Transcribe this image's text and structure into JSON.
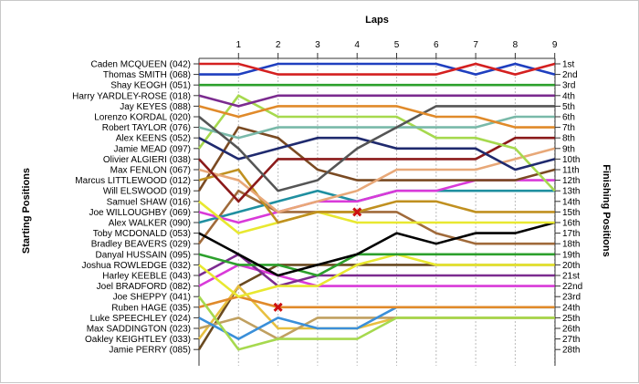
{
  "chart_data": {
    "type": "line",
    "title": "",
    "xlabel": "Laps",
    "ylabel_left": "Starting Positions",
    "ylabel_right": "Finishing Positions",
    "laps": [
      1,
      2,
      3,
      4,
      5,
      6,
      7,
      8,
      9
    ],
    "drivers": [
      "Caden MCQUEEN (042)",
      "Thomas SMITH (068)",
      "Shay KEOGH (051)",
      "Harry YARDLEY-ROSE (018)",
      "Jay KEYES (088)",
      "Lorenzo KORDAL (020)",
      "Robert TAYLOR (076)",
      "Alex KEENS (052)",
      "Jamie MEAD (097)",
      "Olivier ALGIERI (038)",
      "Max FENLON (067)",
      "Marcus LITTLEWOOD (012)",
      "Will ELSWOOD (019)",
      "Samuel SHAW (016)",
      "Joe WILLOUGHBY (069)",
      "Alex WALKER (090)",
      "Toby MCDONALD (053)",
      "Bradley BEAVERS (029)",
      "Danyal HUSSAIN (095)",
      "Joshua ROWLEDGE (032)",
      "Harley KEEBLE (043)",
      "Joel BRADFORD (082)",
      "Joe SHEPPY (041)",
      "Ruben HAGE (035)",
      "Luke SPEECHLEY (024)",
      "Max SADDINGTON (023)",
      "Oakley KEIGHTLEY (033)",
      "Jamie PERRY (085)"
    ],
    "finishing_labels": [
      "1st",
      "2nd",
      "3rd",
      "4th",
      "5th",
      "6th",
      "7th",
      "8th",
      "9th",
      "10th",
      "11th",
      "12th",
      "13th",
      "14th",
      "15th",
      "16th",
      "17th",
      "18th",
      "19th",
      "20th",
      "21st",
      "22nd",
      "23rd",
      "24th",
      "25th",
      "26th",
      "27th",
      "28th"
    ],
    "series": [
      {
        "start": 1,
        "positions": [
          1,
          2,
          2,
          2,
          2,
          2,
          1,
          2,
          1
        ],
        "color": "#d42020"
      },
      {
        "start": 2,
        "positions": [
          2,
          1,
          1,
          1,
          1,
          1,
          2,
          1,
          2
        ],
        "color": "#1f3fbf"
      },
      {
        "start": 3,
        "positions": [
          3,
          3,
          3,
          3,
          3,
          3,
          3,
          3,
          3
        ],
        "color": "#2ca02c"
      },
      {
        "start": 4,
        "positions": [
          5,
          4,
          4,
          4,
          4,
          4,
          4,
          4,
          4
        ],
        "color": "#7b2b8f"
      },
      {
        "start": 5,
        "positions": [
          6,
          5,
          5,
          5,
          5,
          6,
          6,
          7,
          7
        ],
        "color": "#e08a2a"
      },
      {
        "start": 6,
        "positions": [
          9,
          13,
          12,
          9,
          7,
          5,
          5,
          5,
          5
        ],
        "color": "#555555"
      },
      {
        "start": 7,
        "positions": [
          8,
          7,
          7,
          7,
          7,
          7,
          7,
          6,
          6
        ],
        "color": "#79b9a9"
      },
      {
        "start": 8,
        "positions": [
          10,
          9,
          8,
          8,
          9,
          9,
          9,
          11,
          10
        ],
        "color": "#1f2a6e"
      },
      {
        "start": 9,
        "positions": [
          4,
          6,
          6,
          6,
          6,
          8,
          8,
          9,
          13
        ],
        "color": "#a6d94e"
      },
      {
        "start": 10,
        "positions": [
          14,
          10,
          10,
          10,
          10,
          10,
          10,
          8,
          8
        ],
        "color": "#8b1a1a"
      },
      {
        "start": 11,
        "positions": [
          12,
          15,
          14,
          13,
          11,
          11,
          11,
          10,
          9
        ],
        "color": "#e8a878"
      },
      {
        "start": 12,
        "positions": [
          11,
          16,
          15,
          15,
          14,
          14,
          15,
          15,
          15
        ],
        "color": "#c09020"
      },
      {
        "start": 13,
        "positions": [
          7,
          8,
          11,
          12,
          12,
          12,
          12,
          12,
          11
        ],
        "color": "#7a4a22"
      },
      {
        "start": 14,
        "positions": [
          17,
          16,
          15,
          16,
          16,
          16,
          16,
          16,
          16
        ],
        "color": "#e8e830"
      },
      {
        "start": 15,
        "positions": [
          16,
          15,
          14,
          14,
          13,
          13,
          12,
          12,
          12
        ],
        "color": "#d93ad9"
      },
      {
        "start": 16,
        "positions": [
          15,
          14,
          13,
          14,
          13,
          13,
          13,
          13,
          13
        ],
        "color": "#1f8fa0"
      },
      {
        "start": 17,
        "positions": [
          19,
          21,
          20,
          19,
          17,
          18,
          17,
          17,
          16
        ],
        "color": "#000000"
      },
      {
        "start": 18,
        "positions": [
          13,
          15,
          15,
          15,
          15,
          17,
          18,
          18,
          18
        ],
        "color": "#a06a3a"
      },
      {
        "start": 19,
        "positions": [
          20,
          20,
          21,
          19,
          19,
          19,
          19,
          19,
          19
        ],
        "color": "#2ca02c"
      },
      {
        "start": 20,
        "positions": [
          23,
          22,
          22,
          20,
          19,
          20,
          20,
          20,
          20
        ],
        "color": "#e8e830"
      },
      {
        "start": 21,
        "positions": [
          19,
          22,
          21,
          21,
          21,
          21,
          21,
          21,
          21
        ],
        "color": "#7b2b8f"
      },
      {
        "start": 22,
        "positions": [
          20,
          21,
          22,
          22,
          22,
          22,
          22,
          22,
          22
        ],
        "color": "#d93ad9"
      },
      {
        "start": 23,
        "positions": [
          28,
          27,
          27,
          27,
          25,
          25,
          25,
          25,
          25
        ],
        "color": "#a6d94e"
      },
      {
        "start": 24,
        "positions": [
          23,
          24,
          24,
          24,
          24,
          24,
          24,
          24,
          24
        ],
        "color": "#e08a2a"
      },
      {
        "start": 25,
        "positions": [
          27,
          25,
          26,
          26,
          24,
          24,
          24,
          24,
          24
        ],
        "color": "#3a8fd9"
      },
      {
        "start": 26,
        "positions": [
          25,
          27,
          25,
          25,
          25,
          25,
          25,
          25,
          25
        ],
        "color": "#c0a060"
      },
      {
        "start": 27,
        "positions": [
          22,
          26,
          26,
          26,
          25,
          25,
          25,
          25,
          25
        ],
        "color": "#e8c040"
      },
      {
        "start": 28,
        "positions": [
          22,
          20,
          20,
          20,
          20,
          20,
          20,
          20,
          20
        ],
        "color": "#6a4a20"
      }
    ],
    "retirements": [
      {
        "lap": 4,
        "position": 15
      },
      {
        "lap": 2,
        "position": 24
      }
    ]
  }
}
